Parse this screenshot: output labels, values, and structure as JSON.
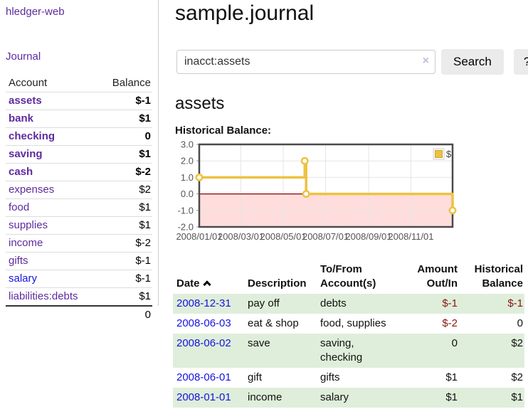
{
  "app": {
    "brand": "hledger-web"
  },
  "nav": {
    "journal": "Journal"
  },
  "sidebar": {
    "header": {
      "account": "Account",
      "balance": "Balance"
    },
    "accounts": [
      {
        "name": "assets",
        "balance": "$-1",
        "depth": 1,
        "bold": true,
        "negative": true,
        "link_color": "purple"
      },
      {
        "name": "bank",
        "balance": "$1",
        "depth": 2,
        "bold": true,
        "negative": false,
        "link_color": "purple"
      },
      {
        "name": "checking",
        "balance": "0",
        "depth": 3,
        "bold": true,
        "negative": false,
        "link_color": "purple"
      },
      {
        "name": "saving",
        "balance": "$1",
        "depth": 3,
        "bold": true,
        "negative": false,
        "link_color": "purple"
      },
      {
        "name": "cash",
        "balance": "$-2",
        "depth": 2,
        "bold": true,
        "negative": true,
        "link_color": "purple"
      },
      {
        "name": "expenses",
        "balance": "$2",
        "depth": 1,
        "bold": false,
        "negative": false,
        "link_color": "purple"
      },
      {
        "name": "food",
        "balance": "$1",
        "depth": 2,
        "bold": false,
        "negative": false,
        "link_color": "purple"
      },
      {
        "name": "supplies",
        "balance": "$1",
        "depth": 2,
        "bold": false,
        "negative": false,
        "link_color": "purple"
      },
      {
        "name": "income",
        "balance": "$-2",
        "depth": 1,
        "bold": false,
        "negative": true,
        "link_color": "purple"
      },
      {
        "name": "gifts",
        "balance": "$-1",
        "depth": 2,
        "bold": false,
        "negative": true,
        "link_color": "purple"
      },
      {
        "name": "salary",
        "balance": "$-1",
        "depth": 2,
        "bold": false,
        "negative": true,
        "link_color": "blue"
      },
      {
        "name": "liabilities:debts",
        "balance": "$1",
        "depth": 1,
        "bold": false,
        "negative": false,
        "link_color": "purple"
      }
    ],
    "total": "0"
  },
  "header": {
    "title": "sample.journal"
  },
  "search": {
    "value": "inacct:assets",
    "clear_icon": "×",
    "search_button": "Search",
    "help_button": "?"
  },
  "account_page": {
    "title": "assets",
    "chart_heading": "Historical Balance:"
  },
  "chart_data": {
    "type": "line",
    "title": "Historical Balance",
    "step": true,
    "series": [
      {
        "name": "$",
        "color": "#EDC240",
        "points": [
          {
            "date": "2008-01-01",
            "value": 1
          },
          {
            "date": "2008-06-01",
            "value": 2
          },
          {
            "date": "2008-06-03",
            "value": 0
          },
          {
            "date": "2008-12-31",
            "value": -1
          }
        ]
      }
    ],
    "ylim": [
      -2,
      3
    ],
    "y_ticks": [
      "3.0",
      "2.0",
      "1.0",
      "0.0",
      "-1.0",
      "-2.0"
    ],
    "x_tick_labels": [
      "2008/01/01",
      "2008/03/01",
      "2008/05/01",
      "2008/07/01",
      "2008/09/01",
      "2008/11/01"
    ],
    "x_start": "2008-01-01",
    "x_end": "2008-12-31",
    "grid": true,
    "legend": {
      "label": "$",
      "position": "top-right"
    },
    "negative_region_color": "#ffdddd",
    "zero_line_color": "#8b0000"
  },
  "transactions": {
    "columns": [
      {
        "label": "Date",
        "sorted": "ascending"
      },
      {
        "label": "Description"
      },
      {
        "label": "To/From Account(s)"
      },
      {
        "label": "Amount Out/In",
        "align": "right"
      },
      {
        "label": "Historical Balance",
        "align": "right"
      }
    ],
    "rows": [
      {
        "date": "2008-12-31",
        "description": "pay off",
        "accounts": "debts",
        "amount": "$-1",
        "amount_negative": true,
        "balance": "$-1",
        "balance_negative": true
      },
      {
        "date": "2008-06-03",
        "description": "eat & shop",
        "accounts": "food, supplies",
        "amount": "$-2",
        "amount_negative": true,
        "balance": "0",
        "balance_negative": false
      },
      {
        "date": "2008-06-02",
        "description": "save",
        "accounts": "saving, checking",
        "amount": "0",
        "amount_negative": false,
        "balance": "$2",
        "balance_negative": false
      },
      {
        "date": "2008-06-01",
        "description": "gift",
        "accounts": "gifts",
        "amount": "$1",
        "amount_negative": false,
        "balance": "$2",
        "balance_negative": false
      },
      {
        "date": "2008-01-01",
        "description": "income",
        "accounts": "salary",
        "amount": "$1",
        "amount_negative": false,
        "balance": "$1",
        "balance_negative": false
      }
    ]
  },
  "colors": {
    "link_purple": "#5e2b9e",
    "link_blue": "#1414e0",
    "negative_bold": "#7a0b0b",
    "negative_soft": "#b05454",
    "negative_table": "#8b1515",
    "row_stripe_green": "#dfeeda",
    "chart_gold": "#EDC240",
    "negative_region_pink": "#ffdddd",
    "zero_line_red": "#8b0000"
  }
}
